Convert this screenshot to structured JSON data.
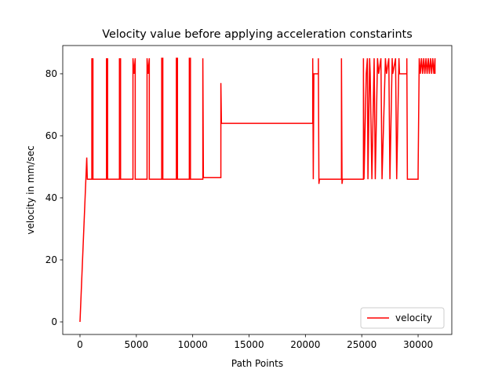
{
  "chart_data": {
    "type": "line",
    "title": "Velocity value before applying acceleration constarints",
    "x_label": "Path Points",
    "y_label": "velocity in mm/sec",
    "x": [
      0,
      600,
      650,
      1050,
      1050,
      1100,
      1150,
      1150,
      2350,
      2350,
      2400,
      2450,
      2450,
      3500,
      3500,
      3550,
      3600,
      3600,
      4700,
      4700,
      4800,
      4900,
      4900,
      5950,
      5950,
      6050,
      6150,
      6150,
      7250,
      7250,
      7350,
      7350,
      8550,
      8550,
      8650,
      8650,
      9700,
      9700,
      9800,
      9800,
      10900,
      10900,
      10950,
      12500,
      12500,
      12550,
      20650,
      20650,
      20700,
      20750,
      21150,
      21150,
      21200,
      21250,
      23200,
      23200,
      23250,
      23300,
      25150,
      25150,
      25200,
      25400,
      25500,
      25550,
      25700,
      25750,
      25900,
      26100,
      26200,
      26400,
      26500,
      26700,
      26800,
      27100,
      27200,
      27400,
      27500,
      27700,
      27750,
      28000,
      28100,
      28300,
      28350,
      29000,
      29000,
      29050,
      30000,
      30000,
      30100,
      30200,
      30300,
      30400,
      30500,
      30600,
      30700,
      30800,
      30900,
      31000,
      31100,
      31200,
      31300,
      31400,
      31500,
      31500
    ],
    "series": [
      {
        "name": "velocity",
        "color": "#ff0000",
        "values": [
          0,
          53,
          46,
          46,
          85,
          80,
          85,
          46,
          46,
          85,
          80,
          85,
          46,
          46,
          85,
          80,
          85,
          46,
          46,
          85,
          80,
          85,
          46,
          46,
          85,
          80,
          85,
          46,
          46,
          85,
          85,
          46,
          46,
          85,
          85,
          46,
          46,
          85,
          85,
          46,
          46,
          85,
          46.5,
          46.5,
          77,
          64,
          64,
          85,
          46,
          80,
          80,
          85,
          44.5,
          46,
          46,
          85,
          44.5,
          46,
          46,
          85,
          46,
          80,
          85,
          46,
          85,
          80,
          46,
          85,
          46,
          85,
          80,
          85,
          46,
          85,
          80,
          85,
          46,
          85,
          80,
          85,
          46,
          85,
          80,
          80,
          85,
          46,
          46,
          48,
          85,
          80,
          85,
          80,
          85,
          80,
          85,
          80,
          85,
          80,
          85,
          80,
          85,
          80,
          85,
          80
        ]
      }
    ],
    "xlim": [
      -1530,
      32990
    ],
    "ylim": [
      -4.05,
      89.1
    ],
    "xticks": [
      0,
      5000,
      10000,
      15000,
      20000,
      25000,
      30000
    ],
    "yticks": [
      0,
      20,
      40,
      60,
      80
    ],
    "legend": "lower right"
  }
}
